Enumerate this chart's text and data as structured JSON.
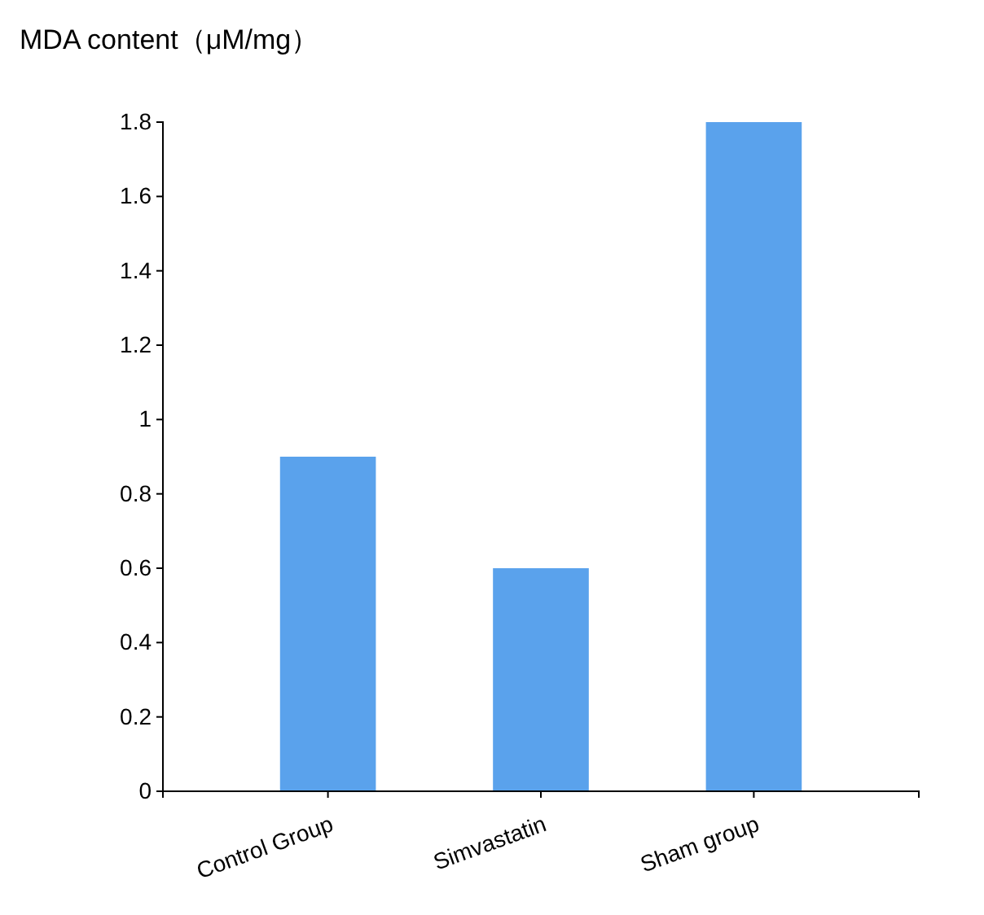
{
  "chart_data": {
    "type": "bar",
    "ylabel": "MDA content（μM/mg）",
    "categories": [
      "Control Group",
      "Simvastatin",
      "Sham group"
    ],
    "values": [
      0.9,
      0.6,
      1.8
    ],
    "color": "#5aa2ec",
    "ylim": [
      0,
      1.8
    ],
    "yticks": [
      0,
      0.2,
      0.4,
      0.6,
      0.8,
      1,
      1.2,
      1.4,
      1.6,
      1.8
    ],
    "grid": false
  }
}
